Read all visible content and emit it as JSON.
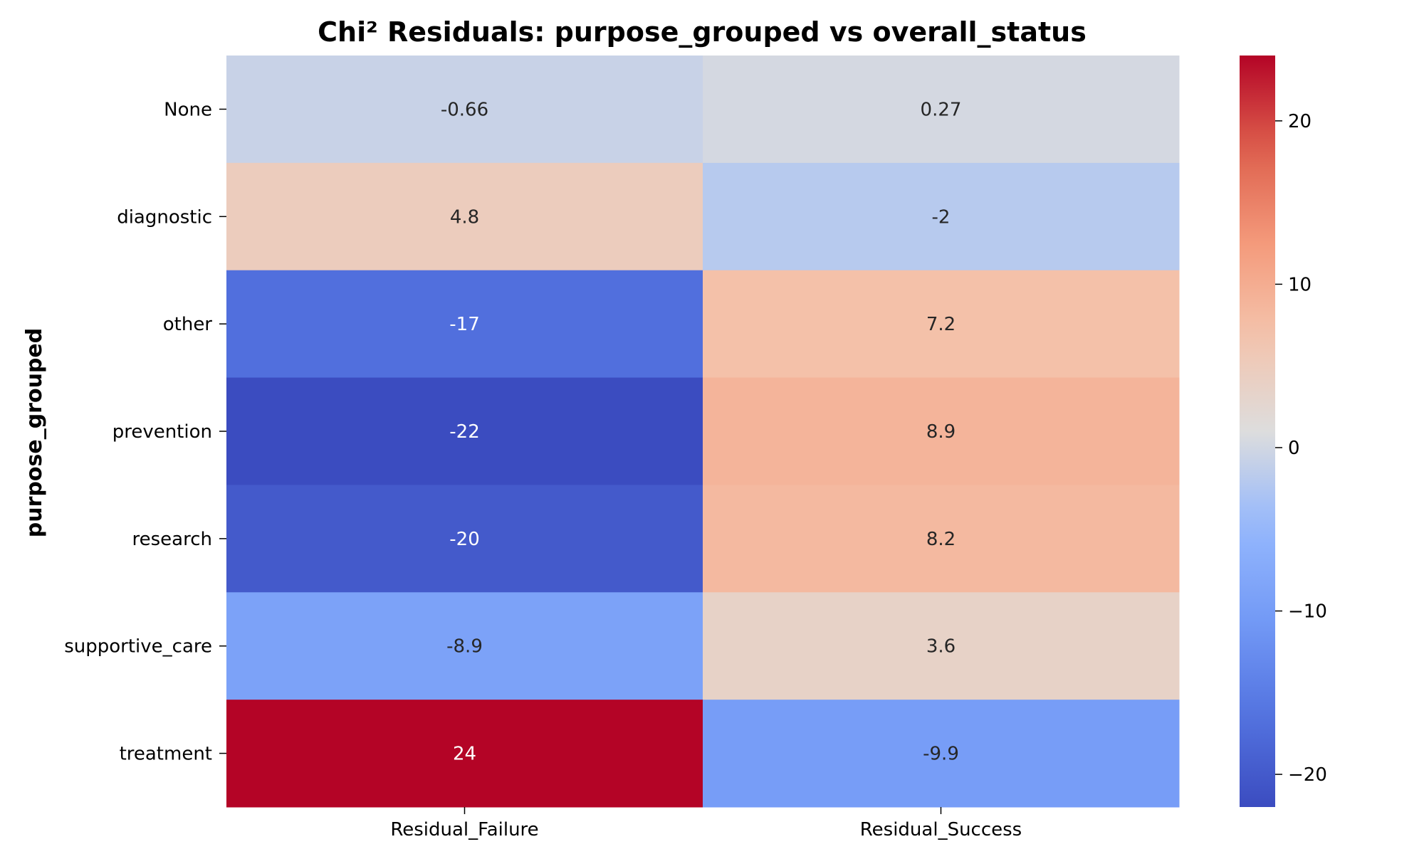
{
  "chart_data": {
    "type": "heatmap",
    "title": "Chi² Residuals: purpose_grouped vs overall_status",
    "ylabel": "purpose_grouped",
    "xlabel": "",
    "columns": [
      "Residual_Failure",
      "Residual_Success"
    ],
    "rows": [
      "None",
      "diagnostic",
      "other",
      "prevention",
      "research",
      "supportive_care",
      "treatment"
    ],
    "values": [
      [
        -0.66,
        0.27
      ],
      [
        4.8,
        -2
      ],
      [
        -17,
        7.2
      ],
      [
        -22,
        8.9
      ],
      [
        -20,
        8.2
      ],
      [
        -8.9,
        3.6
      ],
      [
        24,
        -9.9
      ]
    ],
    "cell_labels": [
      [
        "-0.66",
        "0.27"
      ],
      [
        "4.8",
        "-2"
      ],
      [
        "-17",
        "7.2"
      ],
      [
        "-22",
        "8.9"
      ],
      [
        "-20",
        "8.2"
      ],
      [
        "-8.9",
        "3.6"
      ],
      [
        "24",
        "-9.9"
      ]
    ],
    "colormap": "coolwarm",
    "vmin": -22,
    "vmax": 24,
    "colorbar_ticks": [
      20,
      10,
      0,
      -10,
      -20
    ],
    "colorbar_tick_labels": [
      "20",
      "10",
      "0",
      "−10",
      "−20"
    ],
    "grid": false
  }
}
